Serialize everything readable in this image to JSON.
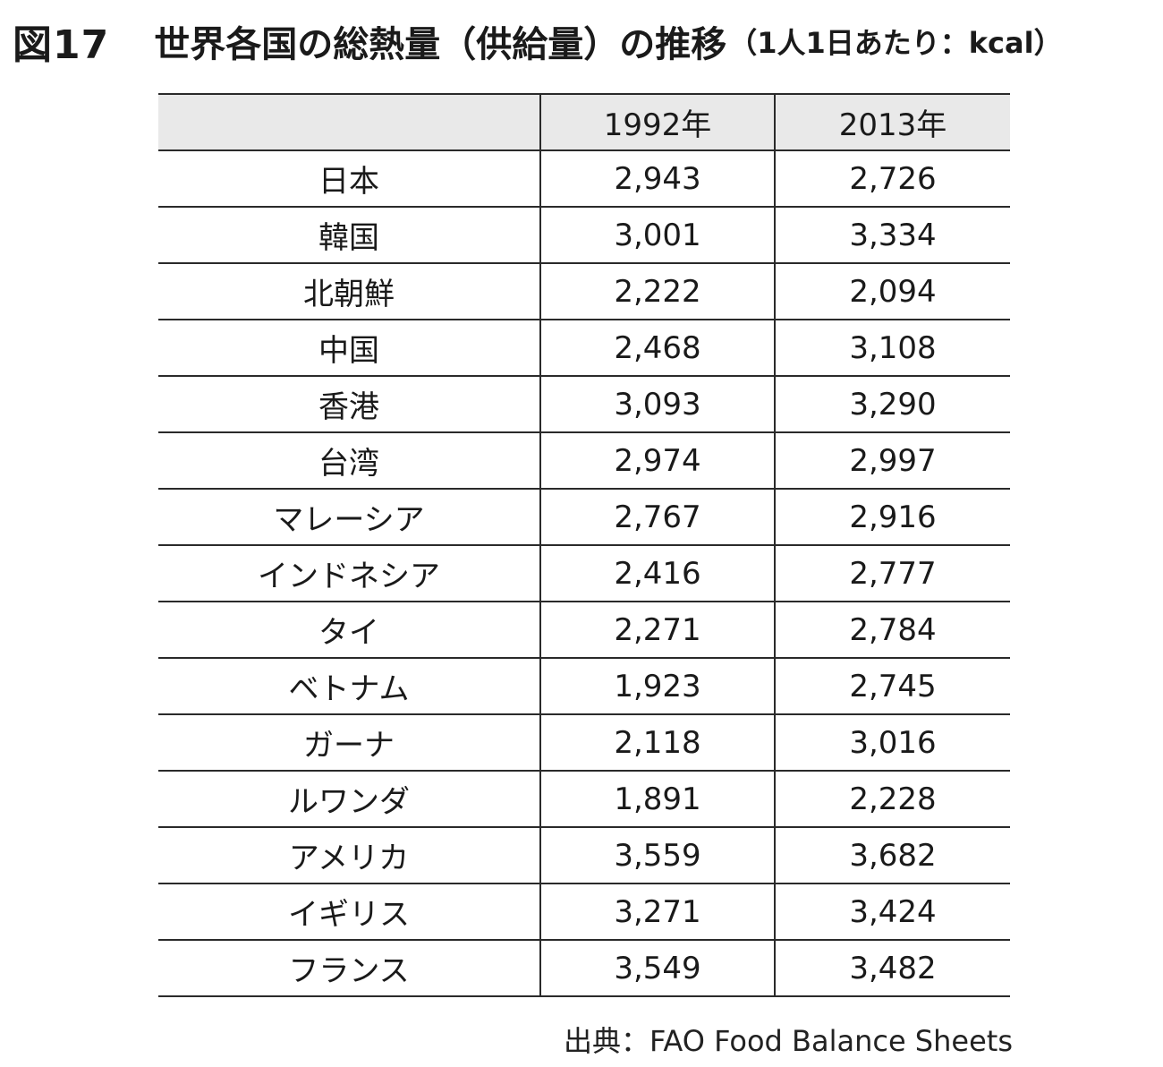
{
  "title": {
    "figure_number": "図17",
    "main": "世界各国の総熱量（供給量）の推移",
    "unit": "（1人1日あたり：kcal）"
  },
  "chart_data": {
    "type": "table",
    "columns": [
      "",
      "1992年",
      "2013年"
    ],
    "rows": [
      {
        "label": "日本",
        "values": [
          "2,943",
          "2,726"
        ]
      },
      {
        "label": "韓国",
        "values": [
          "3,001",
          "3,334"
        ]
      },
      {
        "label": "北朝鮮",
        "values": [
          "2,222",
          "2,094"
        ]
      },
      {
        "label": "中国",
        "values": [
          "2,468",
          "3,108"
        ]
      },
      {
        "label": "香港",
        "values": [
          "3,093",
          "3,290"
        ]
      },
      {
        "label": "台湾",
        "values": [
          "2,974",
          "2,997"
        ]
      },
      {
        "label": "マレーシア",
        "values": [
          "2,767",
          "2,916"
        ]
      },
      {
        "label": "インドネシア",
        "values": [
          "2,416",
          "2,777"
        ]
      },
      {
        "label": "タイ",
        "values": [
          "2,271",
          "2,784"
        ]
      },
      {
        "label": "ベトナム",
        "values": [
          "1,923",
          "2,745"
        ]
      },
      {
        "label": "ガーナ",
        "values": [
          "2,118",
          "3,016"
        ]
      },
      {
        "label": "ルワンダ",
        "values": [
          "1,891",
          "2,228"
        ]
      },
      {
        "label": "アメリカ",
        "values": [
          "3,559",
          "3,682"
        ]
      },
      {
        "label": "イギリス",
        "values": [
          "3,271",
          "3,424"
        ]
      },
      {
        "label": "フランス",
        "values": [
          "3,549",
          "3,482"
        ]
      }
    ],
    "source": "出典：FAO  Food Balance Sheets"
  }
}
